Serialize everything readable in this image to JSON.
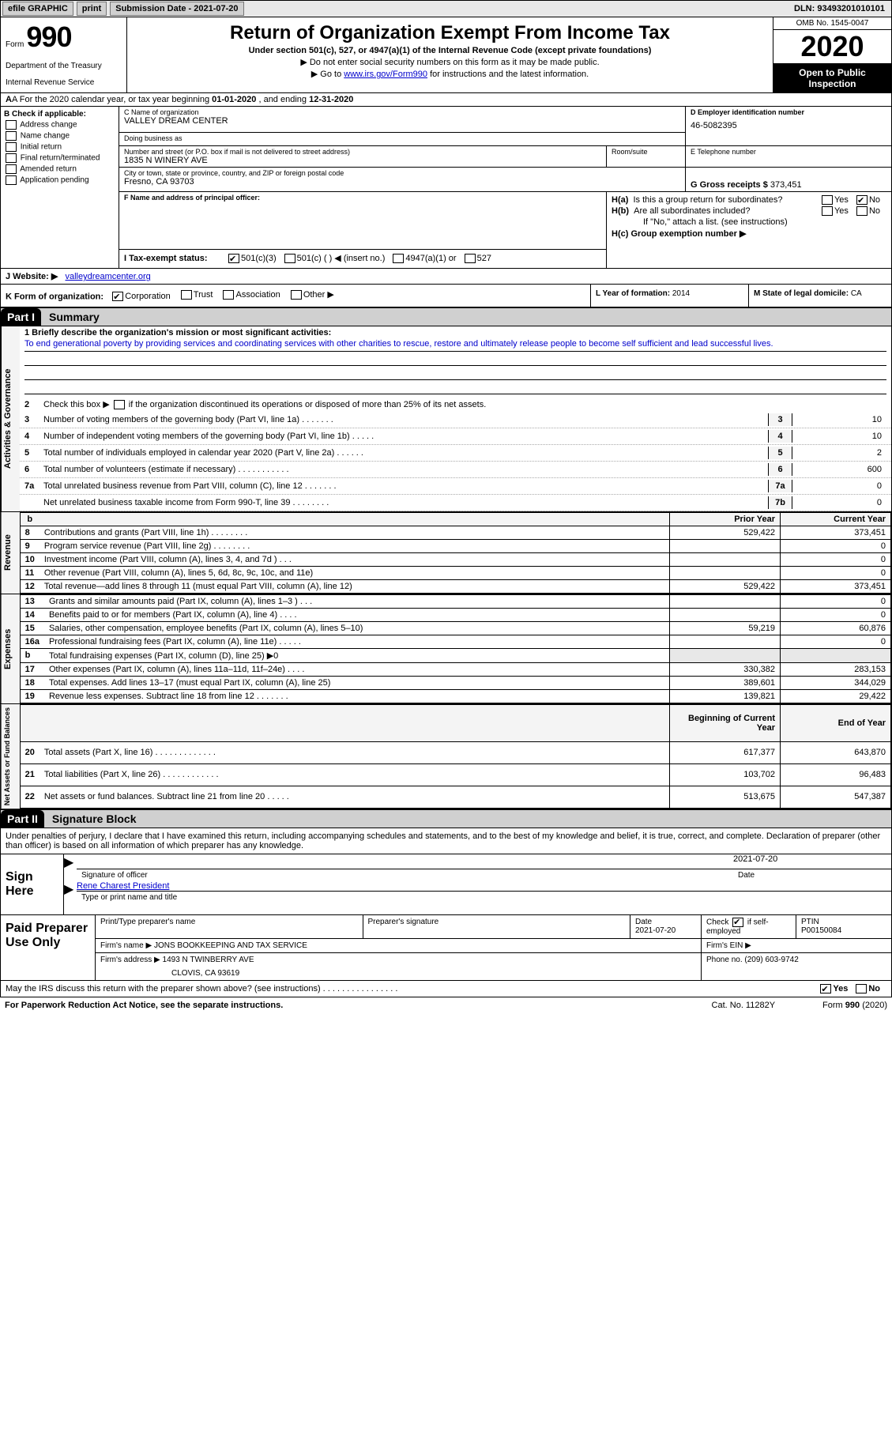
{
  "topbar": {
    "efile_label": "efile GRAPHIC",
    "print_label": "print",
    "submission_label": "Submission Date - 2021-07-20",
    "dln_label": "DLN: 93493201010101"
  },
  "header": {
    "form_label": "Form",
    "form_number": "990",
    "dept1": "Department of the Treasury",
    "dept2": "Internal Revenue Service",
    "title": "Return of Organization Exempt From Income Tax",
    "subtitle": "Under section 501(c), 527, or 4947(a)(1) of the Internal Revenue Code (except private foundations)",
    "instr1": "▶ Do not enter social security numbers on this form as it may be made public.",
    "instr2_prefix": "▶ Go to ",
    "instr2_link": "www.irs.gov/Form990",
    "instr2_suffix": " for instructions and the latest information.",
    "omb": "OMB No. 1545-0047",
    "year": "2020",
    "open_pub": "Open to Public Inspection"
  },
  "row_a": {
    "text_prefix": "A For the 2020 calendar year, or tax year beginning ",
    "date1": "01-01-2020",
    "text_mid": "  , and ending ",
    "date2": "12-31-2020"
  },
  "section_b": {
    "header": "B Check if applicable:",
    "opt1": "Address change",
    "opt2": "Name change",
    "opt3": "Initial return",
    "opt4": "Final return/terminated",
    "opt5": "Amended return",
    "opt6": "Application pending"
  },
  "section_c": {
    "name_label": "C Name of organization",
    "name": "VALLEY DREAM CENTER",
    "dba_label": "Doing business as",
    "dba": "",
    "addr_label": "Number and street (or P.O. box if mail is not delivered to street address)",
    "addr": "1835 N WINERY AVE",
    "room_label": "Room/suite",
    "room": "",
    "city_label": "City or town, state or province, country, and ZIP or foreign postal code",
    "city": "Fresno, CA  93703"
  },
  "section_d": {
    "label": "D Employer identification number",
    "ein": "46-5082395"
  },
  "section_e": {
    "label": "E Telephone number",
    "phone": ""
  },
  "section_g": {
    "label": "G Gross receipts $",
    "val": "373,451"
  },
  "section_f": {
    "label": "F Name and address of principal officer:",
    "val": ""
  },
  "section_h": {
    "ha_label": "H(a)  Is this a group return for subordinates?",
    "hb_label": "H(b)  Are all subordinates included?",
    "hb_note": "If \"No,\" attach a list. (see instructions)",
    "hc_label": "H(c)  Group exemption number ▶",
    "yes": "Yes",
    "no": "No"
  },
  "row_i": {
    "label": "I    Tax-exempt status:",
    "opt1": "501(c)(3)",
    "opt2": "501(c) (  ) ◀ (insert no.)",
    "opt3": "4947(a)(1) or",
    "opt4": "527"
  },
  "row_j": {
    "label": "J   Website: ▶",
    "val": "valleydreamcenter.org"
  },
  "row_k": {
    "label": "K Form of organization:",
    "opt1": "Corporation",
    "opt2": "Trust",
    "opt3": "Association",
    "opt4": "Other ▶"
  },
  "row_l": {
    "label": "L Year of formation:",
    "val": "2014"
  },
  "row_m": {
    "label": "M State of legal domicile:",
    "val": "CA"
  },
  "part1": {
    "hdr": "Part I",
    "title": "Summary",
    "line1_label": "1  Briefly describe the organization's mission or most significant activities:",
    "line1_text": "To end generational poverty by providing services and coordinating services with other charities to rescue, restore and ultimately release people to become self sufficient and lead successful lives.",
    "line2": "Check this box ▶     if the organization discontinued its operations or disposed of more than 25% of its net assets.",
    "vtab1": "Activities & Governance",
    "vtab2": "Revenue",
    "vtab3": "Expenses",
    "vtab4": "Net Assets or Fund Balances",
    "rows_ag": [
      {
        "n": "3",
        "t": "Number of voting members of the governing body (Part VI, line 1a)  .   .   .   .   .   .   .",
        "box": "3",
        "v": "10"
      },
      {
        "n": "4",
        "t": "Number of independent voting members of the governing body (Part VI, line 1b)  .   .   .   .   .",
        "box": "4",
        "v": "10"
      },
      {
        "n": "5",
        "t": "Total number of individuals employed in calendar year 2020 (Part V, line 2a)  .   .   .   .   .   .",
        "box": "5",
        "v": "2"
      },
      {
        "n": "6",
        "t": "Total number of volunteers (estimate if necessary)  .   .   .   .   .   .   .   .   .   .   .",
        "box": "6",
        "v": "600"
      },
      {
        "n": "7a",
        "t": "Total unrelated business revenue from Part VIII, column (C), line 12  .   .   .   .   .   .   .",
        "box": "7a",
        "v": "0"
      },
      {
        "n": "",
        "t": "Net unrelated business taxable income from Form 990-T, line 39  .   .   .   .   .   .   .   .",
        "box": "7b",
        "v": "0"
      }
    ],
    "col_hdr_prior": "Prior Year",
    "col_hdr_curr": "Current Year",
    "rows_rev": [
      {
        "n": "8",
        "t": "Contributions and grants (Part VIII, line 1h)  .   .   .   .   .   .   .   .",
        "p": "529,422",
        "c": "373,451"
      },
      {
        "n": "9",
        "t": "Program service revenue (Part VIII, line 2g)  .   .   .   .   .   .   .   .",
        "p": "",
        "c": "0"
      },
      {
        "n": "10",
        "t": "Investment income (Part VIII, column (A), lines 3, 4, and 7d )  .   .   .",
        "p": "",
        "c": "0"
      },
      {
        "n": "11",
        "t": "Other revenue (Part VIII, column (A), lines 5, 6d, 8c, 9c, 10c, and 11e)",
        "p": "",
        "c": "0"
      },
      {
        "n": "12",
        "t": "Total revenue—add lines 8 through 11 (must equal Part VIII, column (A), line 12)",
        "p": "529,422",
        "c": "373,451"
      }
    ],
    "rows_exp": [
      {
        "n": "13",
        "t": "Grants and similar amounts paid (Part IX, column (A), lines 1–3 )  .   .   .",
        "p": "",
        "c": "0"
      },
      {
        "n": "14",
        "t": "Benefits paid to or for members (Part IX, column (A), line 4)  .   .   .   .",
        "p": "",
        "c": "0"
      },
      {
        "n": "15",
        "t": "Salaries, other compensation, employee benefits (Part IX, column (A), lines 5–10)",
        "p": "59,219",
        "c": "60,876"
      },
      {
        "n": "16a",
        "t": "Professional fundraising fees (Part IX, column (A), line 11e)  .   .   .   .   .",
        "p": "",
        "c": "0"
      },
      {
        "n": "b",
        "t": "Total fundraising expenses (Part IX, column (D), line 25) ▶0",
        "p": "SHADE",
        "c": "SHADE"
      },
      {
        "n": "17",
        "t": "Other expenses (Part IX, column (A), lines 11a–11d, 11f–24e)  .   .   .   .",
        "p": "330,382",
        "c": "283,153"
      },
      {
        "n": "18",
        "t": "Total expenses. Add lines 13–17 (must equal Part IX, column (A), line 25)",
        "p": "389,601",
        "c": "344,029"
      },
      {
        "n": "19",
        "t": "Revenue less expenses. Subtract line 18 from line 12  .   .   .   .   .   .   .",
        "p": "139,821",
        "c": "29,422"
      }
    ],
    "col_hdr_beg": "Beginning of Current Year",
    "col_hdr_end": "End of Year",
    "rows_net": [
      {
        "n": "20",
        "t": "Total assets (Part X, line 16)  .   .   .   .   .   .   .   .   .   .   .   .   .",
        "p": "617,377",
        "c": "643,870"
      },
      {
        "n": "21",
        "t": "Total liabilities (Part X, line 26)  .   .   .   .   .   .   .   .   .   .   .   .",
        "p": "103,702",
        "c": "96,483"
      },
      {
        "n": "22",
        "t": "Net assets or fund balances. Subtract line 21 from line 20  .   .   .   .   .",
        "p": "513,675",
        "c": "547,387"
      }
    ]
  },
  "part2": {
    "hdr": "Part II",
    "title": "Signature Block",
    "penalties": "Under penalties of perjury, I declare that I have examined this return, including accompanying schedules and statements, and to the best of my knowledge and belief, it is true, correct, and complete. Declaration of preparer (other than officer) is based on all information of which preparer has any knowledge.",
    "sign_here": "Sign Here",
    "sig_officer": "Signature of officer",
    "sig_date_label": "Date",
    "sig_date": "2021-07-20",
    "officer_name": "Rene Charest  President",
    "type_name": "Type or print name and title",
    "paid_prep": "Paid Preparer Use Only",
    "prep_name_label": "Print/Type preparer's name",
    "prep_name": "",
    "prep_sig_label": "Preparer's signature",
    "prep_sig": "",
    "prep_date_label": "Date",
    "prep_date": "2021-07-20",
    "check_if": "Check      if self-employed",
    "ptin_label": "PTIN",
    "ptin": "P00150084",
    "firm_name_label": "Firm's name    ▶",
    "firm_name": "JONS BOOKKEEPING AND TAX SERVICE",
    "firm_ein_label": "Firm's EIN ▶",
    "firm_ein": "",
    "firm_addr_label": "Firm's address ▶",
    "firm_addr": "1493 N TWINBERRY AVE",
    "firm_addr2": "CLOVIS, CA  93619",
    "phone_label": "Phone no.",
    "phone": "(209) 603-9742",
    "may_discuss": "May the IRS discuss this return with the preparer shown above? (see instructions)  .   .   .   .   .   .   .   .   .   .   .   .   .   .   .   .",
    "yes": "Yes",
    "no": "No"
  },
  "footer": {
    "pra": "For Paperwork Reduction Act Notice, see the separate instructions.",
    "cat": "Cat. No. 11282Y",
    "form": "Form 990 (2020)"
  },
  "colors": {
    "link": "#0000cc",
    "shade": "#e8e8e8",
    "black": "#000000"
  }
}
